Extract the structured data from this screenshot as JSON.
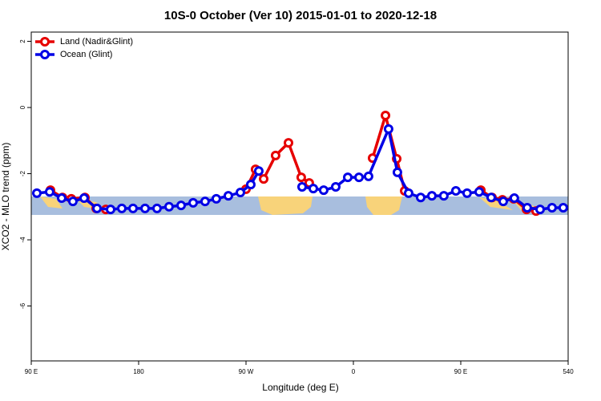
{
  "chart_data": {
    "type": "line",
    "title": "10S-0 October (Ver 10)   2015-01-01 to 2020-12-18",
    "xlabel": "Longitude (deg E)",
    "ylabel": "XCO2 - MLO trend (ppm)",
    "xlim": [
      90,
      540
    ],
    "ylim": [
      -7.66,
      2.28
    ],
    "xticks": [
      {
        "value": 90,
        "label": "90 E"
      },
      180,
      {
        "value": 270,
        "label": "90 W"
      },
      {
        "value": 360,
        "label": "0"
      },
      {
        "value": 450,
        "label": "90 E"
      },
      540
    ],
    "yticks": [
      2,
      0,
      -2,
      -4,
      -6
    ],
    "legend": "top-left",
    "series": [
      {
        "name": "Land (Nadir&Glint)",
        "color": "#e60000",
        "x": [
          106.1,
          116.2,
          123.6,
          135.0,
          144.4,
          152.5,
          null,
          270.0,
          278.0,
          284.8,
          294.8,
          305.6,
          316.3,
          323.0,
          null,
          376.1,
          386.9,
          396.3,
          403.0,
          null,
          466.8,
          476.2,
          484.9,
          494.3,
          505.1,
          513.1
        ],
        "values": [
          -2.5,
          -2.72,
          -2.76,
          -2.72,
          -3.05,
          -3.08,
          null,
          -2.47,
          -1.87,
          -2.16,
          -1.45,
          -1.07,
          -2.11,
          -2.28,
          null,
          -1.53,
          -0.24,
          -1.55,
          -2.52,
          null,
          -2.5,
          -2.72,
          -2.79,
          -2.76,
          -3.08,
          -3.13
        ]
      },
      {
        "name": "Ocean (Glint)",
        "color": "#0000e6",
        "x": [
          94.7,
          105.4,
          115.5,
          124.9,
          134.3,
          145.1,
          156.5,
          165.9,
          175.3,
          185.4,
          195.4,
          205.5,
          215.6,
          225.7,
          235.7,
          245.1,
          255.2,
          265.3,
          274.0,
          280.7,
          null,
          317.0,
          326.4,
          335.1,
          345.2,
          355.3,
          364.7,
          372.7,
          389.5,
          396.9,
          406.3,
          416.4,
          425.8,
          435.8,
          445.9,
          455.3,
          465.4,
          475.5,
          485.6,
          494.9,
          505.7,
          516.5,
          526.5,
          535.9
        ],
        "values": [
          -2.59,
          -2.55,
          -2.74,
          -2.84,
          -2.74,
          -3.05,
          -3.08,
          -3.05,
          -3.05,
          -3.05,
          -3.05,
          -3.0,
          -2.96,
          -2.88,
          -2.84,
          -2.76,
          -2.67,
          -2.57,
          -2.33,
          -1.92,
          null,
          -2.4,
          -2.45,
          -2.5,
          -2.4,
          -2.11,
          -2.11,
          -2.08,
          -0.65,
          -1.96,
          -2.59,
          -2.72,
          -2.67,
          -2.67,
          -2.52,
          -2.59,
          -2.55,
          -2.72,
          -2.84,
          -2.74,
          -3.03,
          -3.08,
          -3.03,
          -3.03
        ]
      }
    ]
  }
}
